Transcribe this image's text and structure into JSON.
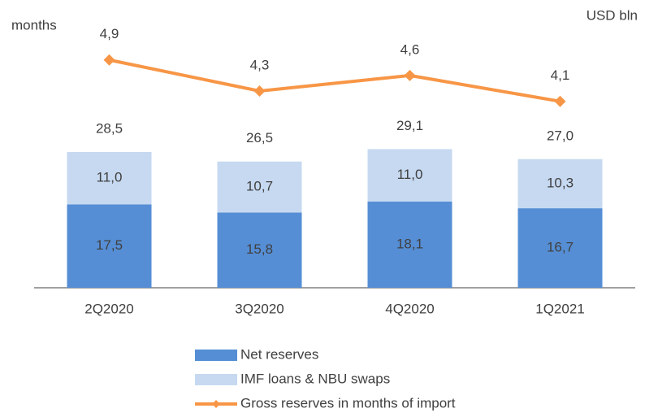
{
  "chart_data": {
    "type": "bar",
    "stacked": true,
    "y_label": "USD bln",
    "y2_label": "months",
    "categories": [
      "2Q2020",
      "3Q2020",
      "4Q2020",
      "1Q2021"
    ],
    "series": [
      {
        "name": "Net reserves",
        "type": "bar",
        "color": "#558ed5",
        "values": [
          17.5,
          15.8,
          18.1,
          16.7
        ],
        "value_labels": [
          "17,5",
          "15,8",
          "18,1",
          "16,7"
        ]
      },
      {
        "name": "IMF loans & NBU swaps",
        "type": "bar",
        "color": "#c6d9f1",
        "values": [
          11.0,
          10.7,
          11.0,
          10.3
        ],
        "value_labels": [
          "11,0",
          "10,7",
          "11,0",
          "10,3"
        ]
      },
      {
        "name": "Gross reserves in months of import",
        "type": "line",
        "axis": "y2",
        "color": "#f79646",
        "values": [
          4.9,
          4.3,
          4.6,
          4.1
        ],
        "value_labels": [
          "4,9",
          "4,3",
          "4,6",
          "4,1"
        ]
      }
    ],
    "totals": [
      28.5,
      26.5,
      29.1,
      27.0
    ],
    "total_labels": [
      "28,5",
      "26,5",
      "29,1",
      "27,0"
    ],
    "ylim": [
      0,
      50
    ],
    "y2lim": [
      0.5,
      5.1
    ],
    "grid": false,
    "legend": "bottom"
  }
}
